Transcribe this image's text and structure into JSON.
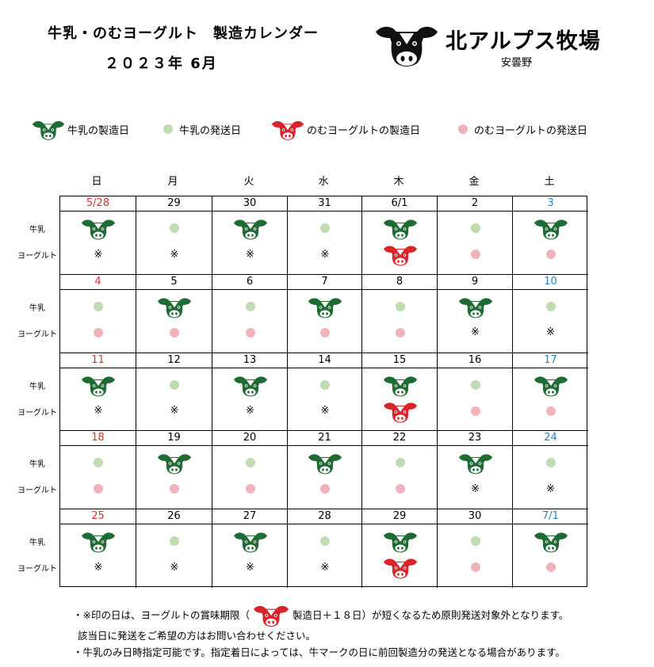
{
  "header": {
    "title_line1": "牛乳・のむヨーグルト　製造カレンダー",
    "title_line2": "２０２３年 6月"
  },
  "logo": {
    "name": "北アルプス牧場",
    "sub": "安曇野"
  },
  "legend": [
    {
      "icon": "cow-icon-green",
      "label": "牛乳の製造日"
    },
    {
      "icon": "dot-green",
      "label": "牛乳の発送日"
    },
    {
      "icon": "cow-icon-red",
      "label": "のむヨーグルトの製造日"
    },
    {
      "icon": "dot-pink",
      "label": "のむヨーグルトの発送日"
    }
  ],
  "weekdays": [
    "日",
    "月",
    "火",
    "水",
    "木",
    "金",
    "土"
  ],
  "row_labels": {
    "milk": "牛乳",
    "yogurt": "ヨーグルト"
  },
  "colors": {
    "sunday": "#e0302d",
    "saturday": "#2a7fc4",
    "cow_green": "#1f6b34",
    "cow_red": "#d9242a",
    "dot_green": "#bfddb1",
    "dot_pink": "#f0b3ba"
  },
  "weeks": [
    {
      "dates": [
        "5/28",
        "29",
        "30",
        "31",
        "6/1",
        "2",
        "3"
      ],
      "milk": [
        "cow",
        "dot",
        "cow",
        "dot",
        "cow",
        "dot",
        "cow"
      ],
      "yogurt": [
        "※",
        "※",
        "※",
        "※",
        "cow",
        "dot",
        "dot"
      ]
    },
    {
      "dates": [
        "4",
        "5",
        "6",
        "7",
        "8",
        "9",
        "10"
      ],
      "milk": [
        "dot",
        "cow",
        "dot",
        "cow",
        "dot",
        "cow",
        "dot"
      ],
      "yogurt": [
        "dot",
        "dot",
        "dot",
        "dot",
        "dot",
        "※",
        "※"
      ]
    },
    {
      "dates": [
        "11",
        "12",
        "13",
        "14",
        "15",
        "16",
        "17"
      ],
      "milk": [
        "cow",
        "dot",
        "cow",
        "dot",
        "cow",
        "dot",
        "cow"
      ],
      "yogurt": [
        "※",
        "※",
        "※",
        "※",
        "cow",
        "dot",
        "dot"
      ]
    },
    {
      "dates": [
        "18",
        "19",
        "20",
        "21",
        "22",
        "23",
        "24"
      ],
      "milk": [
        "dot",
        "cow",
        "dot",
        "cow",
        "dot",
        "cow",
        "dot"
      ],
      "yogurt": [
        "dot",
        "dot",
        "dot",
        "dot",
        "dot",
        "※",
        "※"
      ]
    },
    {
      "dates": [
        "25",
        "26",
        "27",
        "28",
        "29",
        "30",
        "7/1"
      ],
      "milk": [
        "cow",
        "dot",
        "cow",
        "dot",
        "cow",
        "dot",
        "cow"
      ],
      "yogurt": [
        "※",
        "※",
        "※",
        "※",
        "cow",
        "dot",
        "dot"
      ]
    }
  ],
  "notes": {
    "line1_a": "・※印の日は、ヨーグルトの賞味期限（",
    "line1_b": "製造日＋１８日）が短くなるため原則発送対象外となります。",
    "line2": "該当日に発送をご希望の方はお問い合わせください。",
    "line3": "・牛乳のみ日時指定可能です。指定着日によっては、牛マークの日に前回製造分の発送となる場合があります。"
  }
}
